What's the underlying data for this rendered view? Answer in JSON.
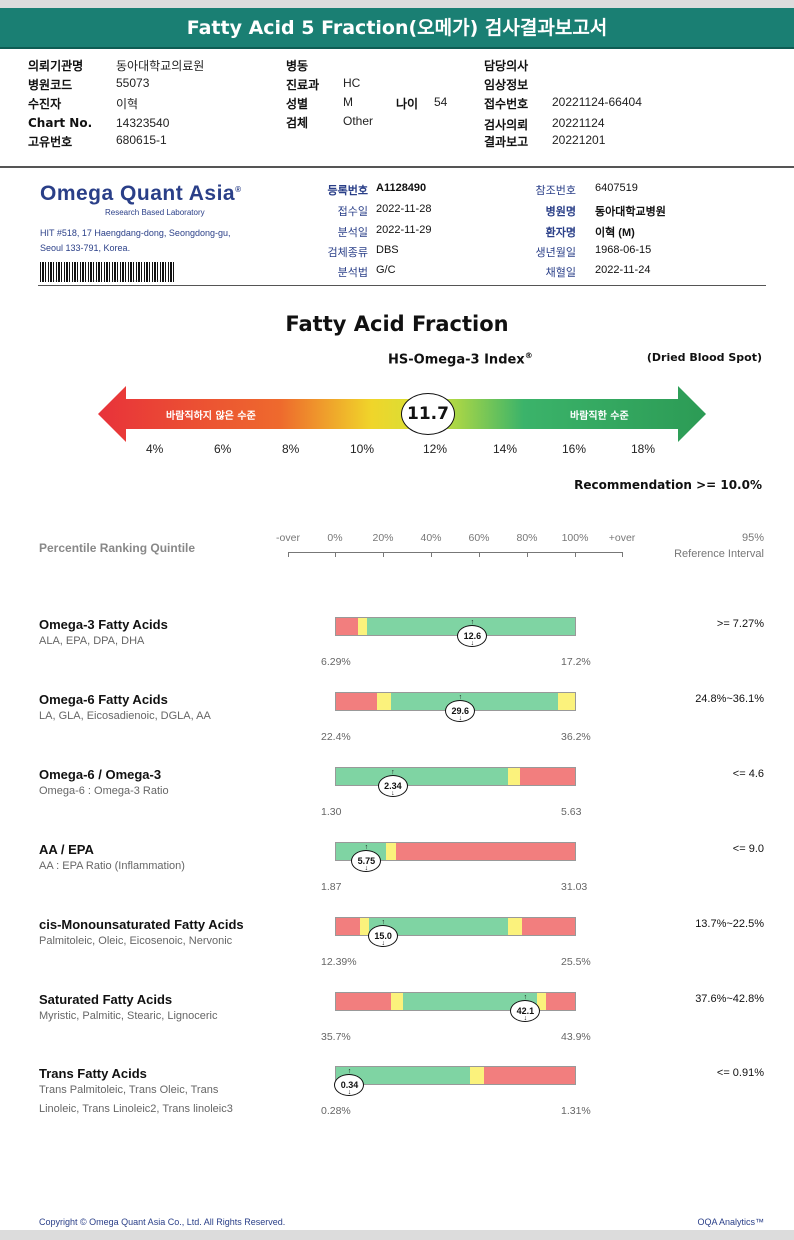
{
  "title": "Fatty Acid 5 Fraction(오메가) 검사결과보고서",
  "header": {
    "col1": [
      {
        "label": "의뢰기관명",
        "value": "동아대학교의료원"
      },
      {
        "label": "병원코드",
        "value": "55073"
      },
      {
        "label": "수진자",
        "value": "이혁"
      },
      {
        "label": "Chart No.",
        "value": "14323540"
      },
      {
        "label": "고유번호",
        "value": "680615-1"
      }
    ],
    "col2": [
      {
        "label": "병동",
        "value": ""
      },
      {
        "label": "진료과",
        "value": "HC"
      },
      {
        "label": "성별",
        "value": "M"
      },
      {
        "label": "검체",
        "value": "Other"
      }
    ],
    "age": {
      "label": "나이",
      "value": "54"
    },
    "col3": [
      {
        "label": "담당의사",
        "value": ""
      },
      {
        "label": "임상정보",
        "value": ""
      },
      {
        "label": "접수번호",
        "value": "20221124-66404"
      },
      {
        "label": "검사의뢰",
        "value": "20221124"
      },
      {
        "label": "결과보고",
        "value": "20221201"
      }
    ]
  },
  "lab": {
    "logo": "Omega Quant Asia",
    "logo_mark": "®",
    "tagline": "Research Based Laboratory",
    "address_line1": "HIT #518, 17 Haengdang-dong, Seongdong-gu,",
    "address_line2": "Seoul 133-791, Korea."
  },
  "registration": {
    "left": [
      {
        "label": "등록번호",
        "value": "A1128490"
      },
      {
        "label": "접수일",
        "value": "2022-11-28"
      },
      {
        "label": "분석일",
        "value": "2022-11-29"
      },
      {
        "label": "검체종류",
        "value": "DBS"
      },
      {
        "label": "분석법",
        "value": "G/C"
      }
    ],
    "right": [
      {
        "label": "참조번호",
        "value": "6407519"
      },
      {
        "label": "병원명",
        "value": "동아대학교병원"
      },
      {
        "label": "환자명",
        "value": "이혁 (M)"
      },
      {
        "label": "생년월일",
        "value": "1968-06-15"
      },
      {
        "label": "채혈일",
        "value": "2022-11-24"
      }
    ]
  },
  "report": {
    "title": "Fatty Acid Fraction",
    "index_title": "HS-Omega-3 Index",
    "index_mark": "®",
    "sample_type": "(Dried Blood Spot)",
    "index_value": "11.7",
    "bad_label": "바람직하지 않은 수준",
    "good_label": "바람직한 수준",
    "scale": [
      "4%",
      "6%",
      "8%",
      "10%",
      "12%",
      "14%",
      "16%",
      "18%"
    ],
    "recommendation": "Recommendation  >= 10.0%"
  },
  "percentile": {
    "title": "Percentile Ranking Quintile",
    "ticks": [
      "-over",
      "0%",
      "20%",
      "40%",
      "60%",
      "80%",
      "100%",
      "+over"
    ],
    "ref_title1": "95%",
    "ref_title2": "Reference Interval"
  },
  "rows": [
    {
      "name": "Omega-3 Fatty Acids",
      "sub": "ALA, EPA, DPA, DHA",
      "min": "6.29%",
      "max": "17.2%",
      "value": "12.6",
      "value_pct": 0.57,
      "ref": ">= 7.27%",
      "segments": [
        {
          "from": 0,
          "to": 0.09,
          "color": "#f27e7e"
        },
        {
          "from": 0.09,
          "to": 0.13,
          "color": "#fbf27c"
        },
        {
          "from": 0.13,
          "to": 1,
          "color": "#7fd4a3"
        }
      ]
    },
    {
      "name": "Omega-6 Fatty Acids",
      "sub": "LA, GLA, Eicosadienoic, DGLA, AA",
      "min": "22.4%",
      "max": "36.2%",
      "value": "29.6",
      "value_pct": 0.52,
      "ref": "24.8%~36.1%",
      "segments": [
        {
          "from": 0,
          "to": 0.17,
          "color": "#f27e7e"
        },
        {
          "from": 0.17,
          "to": 0.23,
          "color": "#fbf27c"
        },
        {
          "from": 0.23,
          "to": 0.93,
          "color": "#7fd4a3"
        },
        {
          "from": 0.93,
          "to": 1,
          "color": "#fbf27c"
        }
      ]
    },
    {
      "name": "Omega-6 / Omega-3",
      "sub": "Omega-6 : Omega-3 Ratio",
      "min": "1.30",
      "max": "5.63",
      "value": "2.34",
      "value_pct": 0.24,
      "ref": "<= 4.6",
      "segments": [
        {
          "from": 0,
          "to": 0.72,
          "color": "#7fd4a3"
        },
        {
          "from": 0.72,
          "to": 0.77,
          "color": "#fbf27c"
        },
        {
          "from": 0.77,
          "to": 1,
          "color": "#f27e7e"
        }
      ]
    },
    {
      "name": "AA / EPA",
      "sub": "AA : EPA Ratio (Inflammation)",
      "min": "1.87",
      "max": "31.03",
      "value": "5.75",
      "value_pct": 0.13,
      "ref": "<= 9.0",
      "segments": [
        {
          "from": 0,
          "to": 0.21,
          "color": "#7fd4a3"
        },
        {
          "from": 0.21,
          "to": 0.25,
          "color": "#fbf27c"
        },
        {
          "from": 0.25,
          "to": 1,
          "color": "#f27e7e"
        }
      ]
    },
    {
      "name": "cis-Monounsaturated Fatty Acids",
      "sub": "Palmitoleic, Oleic, Eicosenoic, Nervonic",
      "min": "12.39%",
      "max": "25.5%",
      "value": "15.0",
      "value_pct": 0.2,
      "ref": "13.7%~22.5%",
      "segments": [
        {
          "from": 0,
          "to": 0.1,
          "color": "#f27e7e"
        },
        {
          "from": 0.1,
          "to": 0.14,
          "color": "#fbf27c"
        },
        {
          "from": 0.14,
          "to": 0.72,
          "color": "#7fd4a3"
        },
        {
          "from": 0.72,
          "to": 0.78,
          "color": "#fbf27c"
        },
        {
          "from": 0.78,
          "to": 1,
          "color": "#f27e7e"
        }
      ]
    },
    {
      "name": "Saturated Fatty Acids",
      "sub": "Myristic, Palmitic, Stearic, Lignoceric",
      "min": "35.7%",
      "max": "43.9%",
      "value": "42.1",
      "value_pct": 0.79,
      "ref": "37.6%~42.8%",
      "segments": [
        {
          "from": 0,
          "to": 0.23,
          "color": "#f27e7e"
        },
        {
          "from": 0.23,
          "to": 0.28,
          "color": "#fbf27c"
        },
        {
          "from": 0.28,
          "to": 0.84,
          "color": "#7fd4a3"
        },
        {
          "from": 0.84,
          "to": 0.88,
          "color": "#fbf27c"
        },
        {
          "from": 0.88,
          "to": 1,
          "color": "#f27e7e"
        }
      ]
    },
    {
      "name": "Trans Fatty Acids",
      "sub": "Trans Palmitoleic, Trans Oleic, Trans Linoleic, Trans Linoleic2, Trans linoleic3",
      "min": "0.28%",
      "max": "1.31%",
      "value": "0.34",
      "value_pct": 0.06,
      "ref": "<= 0.91%",
      "segments": [
        {
          "from": 0,
          "to": 0.56,
          "color": "#7fd4a3"
        },
        {
          "from": 0.56,
          "to": 0.62,
          "color": "#fbf27c"
        },
        {
          "from": 0.62,
          "to": 1,
          "color": "#f27e7e"
        }
      ]
    }
  ],
  "footer": {
    "copyright": "Copyright © Omega Quant Asia Co., Ltd.  All Rights Reserved.",
    "brand": "OQA Analytics™"
  }
}
